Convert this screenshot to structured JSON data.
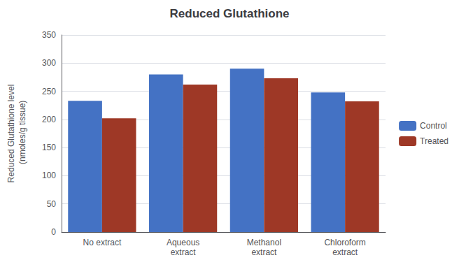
{
  "chart_data": {
    "type": "bar",
    "title": "Reduced Glutathione",
    "ylabel": "Reduced Glutathione level\n (nmoles/g tissue)",
    "categories": [
      "No extract",
      "Aqueous\nextract",
      "Methanol\nextract",
      "Chloroform\nextract"
    ],
    "series": [
      {
        "name": "Control",
        "color": "#4472C4",
        "values": [
          233,
          280,
          290,
          248
        ]
      },
      {
        "name": "Treated",
        "color": "#9E3826",
        "values": [
          202,
          262,
          273,
          232
        ]
      }
    ],
    "ylim": [
      0,
      350
    ],
    "yticks": [
      0,
      50,
      100,
      150,
      200,
      250,
      300,
      350
    ],
    "grid": true,
    "legend": "right"
  }
}
